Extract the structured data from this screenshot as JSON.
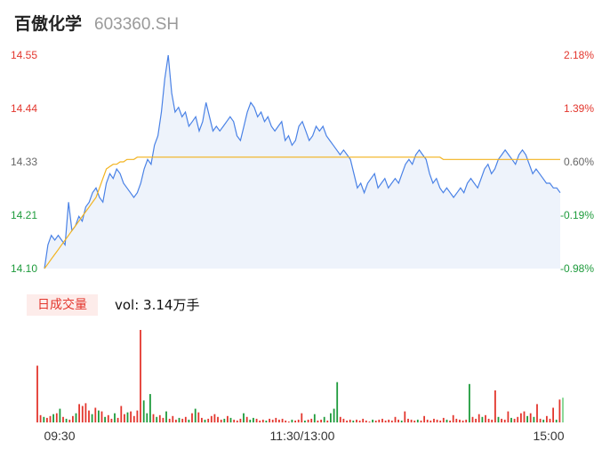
{
  "header": {
    "name": "百傲化学",
    "code": "603360.SH"
  },
  "volume_panel": {
    "badge": "日成交量",
    "label": "vol: 3.14万手"
  },
  "colors": {
    "price_line": "#4a82e6",
    "avg_line": "#f2b31e",
    "up": "#e3362d",
    "down": "#1e9b3c",
    "neutral": "#666666",
    "area_fill": "#eef3fb"
  },
  "chart_data": [
    {
      "type": "line",
      "title": "",
      "y_left_ticks": [
        "14.55",
        "14.44",
        "14.33",
        "14.21",
        "14.10"
      ],
      "y_right_ticks": [
        "2.18%",
        "1.39%",
        "0.60%",
        "-0.19%",
        "-0.98%"
      ],
      "ylim": [
        14.1,
        14.55
      ],
      "prev_close": 14.24,
      "grid": false,
      "series": [
        {
          "key": "price",
          "values": [
            14.1,
            14.15,
            14.17,
            14.16,
            14.17,
            14.16,
            14.15,
            14.24,
            14.18,
            14.19,
            14.21,
            14.2,
            14.23,
            14.24,
            14.26,
            14.27,
            14.25,
            14.24,
            14.28,
            14.3,
            14.29,
            14.31,
            14.3,
            14.28,
            14.27,
            14.26,
            14.25,
            14.26,
            14.28,
            14.31,
            14.33,
            14.32,
            14.36,
            14.38,
            14.43,
            14.5,
            14.55,
            14.47,
            14.43,
            14.44,
            14.42,
            14.43,
            14.4,
            14.41,
            14.42,
            14.39,
            14.41,
            14.45,
            14.42,
            14.39,
            14.4,
            14.39,
            14.4,
            14.41,
            14.42,
            14.41,
            14.38,
            14.37,
            14.4,
            14.43,
            14.45,
            14.44,
            14.42,
            14.43,
            14.41,
            14.42,
            14.4,
            14.39,
            14.4,
            14.41,
            14.37,
            14.38,
            14.36,
            14.37,
            14.4,
            14.41,
            14.39,
            14.37,
            14.38,
            14.4,
            14.39,
            14.4,
            14.38,
            14.37,
            14.36,
            14.35,
            14.34,
            14.35,
            14.34,
            14.33,
            14.3,
            14.27,
            14.28,
            14.26,
            14.28,
            14.29,
            14.3,
            14.27,
            14.28,
            14.29,
            14.27,
            14.28,
            14.29,
            14.28,
            14.3,
            14.32,
            14.33,
            14.32,
            14.34,
            14.35,
            14.34,
            14.33,
            14.3,
            14.28,
            14.29,
            14.27,
            14.26,
            14.27,
            14.26,
            14.25,
            14.26,
            14.27,
            14.26,
            14.28,
            14.29,
            14.28,
            14.27,
            14.29,
            14.31,
            14.32,
            14.3,
            14.31,
            14.33,
            14.34,
            14.35,
            14.34,
            14.33,
            14.32,
            14.34,
            14.35,
            14.34,
            14.32,
            14.3,
            14.31,
            14.3,
            14.29,
            14.28,
            14.28,
            14.27,
            14.27,
            14.26
          ]
        },
        {
          "key": "average",
          "values": [
            14.1,
            14.11,
            14.12,
            14.13,
            14.14,
            14.15,
            14.16,
            14.17,
            14.18,
            14.19,
            14.2,
            14.21,
            14.22,
            14.23,
            14.24,
            14.25,
            14.27,
            14.29,
            14.31,
            14.315,
            14.32,
            14.32,
            14.325,
            14.325,
            14.33,
            14.33,
            14.33,
            14.335,
            14.335,
            14.335,
            14.335,
            14.335,
            14.335,
            14.335,
            14.335,
            14.335,
            14.335,
            14.335,
            14.335,
            14.335,
            14.335,
            14.335,
            14.335,
            14.335,
            14.335,
            14.335,
            14.335,
            14.335,
            14.335,
            14.335,
            14.335,
            14.335,
            14.335,
            14.335,
            14.335,
            14.335,
            14.335,
            14.335,
            14.335,
            14.335,
            14.335,
            14.335,
            14.335,
            14.335,
            14.335,
            14.335,
            14.335,
            14.335,
            14.335,
            14.335,
            14.335,
            14.335,
            14.335,
            14.335,
            14.335,
            14.335,
            14.335,
            14.335,
            14.335,
            14.335,
            14.335,
            14.335,
            14.335,
            14.335,
            14.335,
            14.335,
            14.335,
            14.335,
            14.335,
            14.335,
            14.335,
            14.335,
            14.335,
            14.335,
            14.335,
            14.335,
            14.335,
            14.335,
            14.335,
            14.335,
            14.335,
            14.335,
            14.335,
            14.335,
            14.335,
            14.335,
            14.335,
            14.335,
            14.335,
            14.335,
            14.335,
            14.335,
            14.335,
            14.335,
            14.335,
            14.335,
            14.33,
            14.33,
            14.33,
            14.33,
            14.33,
            14.33,
            14.33,
            14.33,
            14.33,
            14.33,
            14.33,
            14.33,
            14.33,
            14.33,
            14.33,
            14.33,
            14.33,
            14.33,
            14.33,
            14.33,
            14.33,
            14.33,
            14.33,
            14.33,
            14.33,
            14.33,
            14.33,
            14.33,
            14.33,
            14.33,
            14.33,
            14.33,
            14.33,
            14.33,
            14.33
          ]
        }
      ]
    },
    {
      "type": "bar",
      "title": "",
      "x_ticks": [
        "09:30",
        "11:30/13:00",
        "15:00"
      ],
      "unit": "手",
      "ylim": [
        0,
        1020
      ],
      "values": [
        {
          "v": 620,
          "d": "up"
        },
        {
          "v": 80,
          "d": "up"
        },
        {
          "v": 60,
          "d": "down"
        },
        {
          "v": 50,
          "d": "up"
        },
        {
          "v": 70,
          "d": "up"
        },
        {
          "v": 90,
          "d": "down"
        },
        {
          "v": 100,
          "d": "up"
        },
        {
          "v": 150,
          "d": "down"
        },
        {
          "v": 60,
          "d": "up"
        },
        {
          "v": 40,
          "d": "down"
        },
        {
          "v": 30,
          "d": "up"
        },
        {
          "v": 70,
          "d": "up"
        },
        {
          "v": 100,
          "d": "down"
        },
        {
          "v": 200,
          "d": "up"
        },
        {
          "v": 180,
          "d": "up"
        },
        {
          "v": 210,
          "d": "up"
        },
        {
          "v": 130,
          "d": "up"
        },
        {
          "v": 90,
          "d": "down"
        },
        {
          "v": 160,
          "d": "up"
        },
        {
          "v": 130,
          "d": "down"
        },
        {
          "v": 120,
          "d": "up"
        },
        {
          "v": 60,
          "d": "down"
        },
        {
          "v": 80,
          "d": "up"
        },
        {
          "v": 40,
          "d": "up"
        },
        {
          "v": 100,
          "d": "down"
        },
        {
          "v": 50,
          "d": "up"
        },
        {
          "v": 180,
          "d": "up"
        },
        {
          "v": 90,
          "d": "up"
        },
        {
          "v": 110,
          "d": "down"
        },
        {
          "v": 120,
          "d": "up"
        },
        {
          "v": 70,
          "d": "up"
        },
        {
          "v": 130,
          "d": "up"
        },
        {
          "v": 1010,
          "d": "up"
        },
        {
          "v": 240,
          "d": "down"
        },
        {
          "v": 100,
          "d": "down"
        },
        {
          "v": 310,
          "d": "down"
        },
        {
          "v": 90,
          "d": "up"
        },
        {
          "v": 60,
          "d": "down"
        },
        {
          "v": 80,
          "d": "up"
        },
        {
          "v": 50,
          "d": "up"
        },
        {
          "v": 120,
          "d": "down"
        },
        {
          "v": 40,
          "d": "up"
        },
        {
          "v": 70,
          "d": "up"
        },
        {
          "v": 30,
          "d": "up"
        },
        {
          "v": 50,
          "d": "down"
        },
        {
          "v": 40,
          "d": "up"
        },
        {
          "v": 60,
          "d": "up"
        },
        {
          "v": 30,
          "d": "down"
        },
        {
          "v": 100,
          "d": "up"
        },
        {
          "v": 150,
          "d": "down"
        },
        {
          "v": 110,
          "d": "up"
        },
        {
          "v": 50,
          "d": "up"
        },
        {
          "v": 30,
          "d": "down"
        },
        {
          "v": 40,
          "d": "up"
        },
        {
          "v": 70,
          "d": "up"
        },
        {
          "v": 90,
          "d": "up"
        },
        {
          "v": 60,
          "d": "up"
        },
        {
          "v": 30,
          "d": "up"
        },
        {
          "v": 40,
          "d": "down"
        },
        {
          "v": 70,
          "d": "up"
        },
        {
          "v": 50,
          "d": "down"
        },
        {
          "v": 30,
          "d": "up"
        },
        {
          "v": 20,
          "d": "up"
        },
        {
          "v": 40,
          "d": "up"
        },
        {
          "v": 100,
          "d": "down"
        },
        {
          "v": 60,
          "d": "up"
        },
        {
          "v": 30,
          "d": "down"
        },
        {
          "v": 50,
          "d": "down"
        },
        {
          "v": 40,
          "d": "up"
        },
        {
          "v": 20,
          "d": "up"
        },
        {
          "v": 30,
          "d": "up"
        },
        {
          "v": 20,
          "d": "down"
        },
        {
          "v": 40,
          "d": "up"
        },
        {
          "v": 30,
          "d": "up"
        },
        {
          "v": 50,
          "d": "up"
        },
        {
          "v": 30,
          "d": "up"
        },
        {
          "v": 40,
          "d": "up"
        },
        {
          "v": 20,
          "d": "up"
        },
        {
          "v": 10,
          "d": "up"
        },
        {
          "v": 30,
          "d": "down"
        },
        {
          "v": 20,
          "d": "up"
        },
        {
          "v": 30,
          "d": "up"
        },
        {
          "v": 100,
          "d": "up"
        },
        {
          "v": 20,
          "d": "down"
        },
        {
          "v": 30,
          "d": "up"
        },
        {
          "v": 40,
          "d": "up"
        },
        {
          "v": 90,
          "d": "down"
        },
        {
          "v": 20,
          "d": "up"
        },
        {
          "v": 30,
          "d": "up"
        },
        {
          "v": 60,
          "d": "down"
        },
        {
          "v": 20,
          "d": "up"
        },
        {
          "v": 100,
          "d": "down"
        },
        {
          "v": 150,
          "d": "down"
        },
        {
          "v": 440,
          "d": "down"
        },
        {
          "v": 60,
          "d": "up"
        },
        {
          "v": 40,
          "d": "up"
        },
        {
          "v": 20,
          "d": "up"
        },
        {
          "v": 30,
          "d": "up"
        },
        {
          "v": 20,
          "d": "down"
        },
        {
          "v": 30,
          "d": "up"
        },
        {
          "v": 20,
          "d": "up"
        },
        {
          "v": 40,
          "d": "up"
        },
        {
          "v": 20,
          "d": "up"
        },
        {
          "v": 10,
          "d": "up"
        },
        {
          "v": 30,
          "d": "down"
        },
        {
          "v": 20,
          "d": "up"
        },
        {
          "v": 30,
          "d": "up"
        },
        {
          "v": 40,
          "d": "up"
        },
        {
          "v": 20,
          "d": "up"
        },
        {
          "v": 30,
          "d": "up"
        },
        {
          "v": 20,
          "d": "up"
        },
        {
          "v": 60,
          "d": "up"
        },
        {
          "v": 30,
          "d": "up"
        },
        {
          "v": 20,
          "d": "down"
        },
        {
          "v": 120,
          "d": "up"
        },
        {
          "v": 40,
          "d": "up"
        },
        {
          "v": 30,
          "d": "up"
        },
        {
          "v": 20,
          "d": "up"
        },
        {
          "v": 30,
          "d": "down"
        },
        {
          "v": 20,
          "d": "up"
        },
        {
          "v": 70,
          "d": "up"
        },
        {
          "v": 30,
          "d": "up"
        },
        {
          "v": 20,
          "d": "up"
        },
        {
          "v": 40,
          "d": "up"
        },
        {
          "v": 30,
          "d": "up"
        },
        {
          "v": 20,
          "d": "up"
        },
        {
          "v": 50,
          "d": "up"
        },
        {
          "v": 30,
          "d": "down"
        },
        {
          "v": 20,
          "d": "up"
        },
        {
          "v": 80,
          "d": "up"
        },
        {
          "v": 40,
          "d": "up"
        },
        {
          "v": 30,
          "d": "up"
        },
        {
          "v": 20,
          "d": "up"
        },
        {
          "v": 30,
          "d": "up"
        },
        {
          "v": 420,
          "d": "down"
        },
        {
          "v": 60,
          "d": "up"
        },
        {
          "v": 40,
          "d": "up"
        },
        {
          "v": 90,
          "d": "up"
        },
        {
          "v": 60,
          "d": "down"
        },
        {
          "v": 80,
          "d": "up"
        },
        {
          "v": 40,
          "d": "up"
        },
        {
          "v": 30,
          "d": "up"
        },
        {
          "v": 350,
          "d": "up"
        },
        {
          "v": 60,
          "d": "down"
        },
        {
          "v": 40,
          "d": "up"
        },
        {
          "v": 30,
          "d": "up"
        },
        {
          "v": 120,
          "d": "up"
        },
        {
          "v": 50,
          "d": "down"
        },
        {
          "v": 40,
          "d": "up"
        },
        {
          "v": 60,
          "d": "up"
        },
        {
          "v": 100,
          "d": "up"
        },
        {
          "v": 120,
          "d": "up"
        },
        {
          "v": 70,
          "d": "down"
        },
        {
          "v": 100,
          "d": "up"
        },
        {
          "v": 60,
          "d": "down"
        },
        {
          "v": 200,
          "d": "up"
        },
        {
          "v": 40,
          "d": "up"
        },
        {
          "v": 30,
          "d": "down"
        },
        {
          "v": 70,
          "d": "up"
        },
        {
          "v": 40,
          "d": "up"
        },
        {
          "v": 160,
          "d": "up"
        },
        {
          "v": 30,
          "d": "down"
        },
        {
          "v": 250,
          "d": "up"
        },
        {
          "v": 270,
          "d": "neutral"
        }
      ]
    }
  ]
}
